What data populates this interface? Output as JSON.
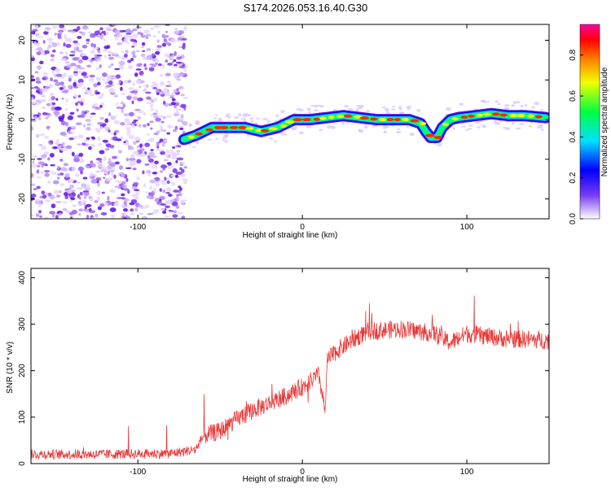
{
  "title": "S174.2026.053.16.40.G30",
  "colors": {
    "trace": "#e83a3a",
    "noise": "#8a3ff0",
    "axis": "#000000"
  },
  "chart_data": [
    {
      "type": "heatmap",
      "xlabel": "Height of straight line (km)",
      "ylabel": "Frequency (Hz)",
      "xlim": [
        -165,
        150
      ],
      "ylim": [
        -25,
        24
      ],
      "xticks": [
        -100,
        0,
        100
      ],
      "yticks": [
        -20,
        -10,
        0,
        10,
        20
      ],
      "colorbar": {
        "label": "Normalized spectral amplitude",
        "range": [
          0,
          0.95
        ],
        "ticks": [
          0,
          0.2,
          0.4,
          0.6,
          0.8
        ]
      },
      "ridge": {
        "x": [
          -72,
          -65,
          -55,
          -45,
          -35,
          -25,
          -15,
          -5,
          5,
          15,
          25,
          35,
          45,
          55,
          65,
          72,
          75,
          78,
          82,
          85,
          90,
          95,
          105,
          115,
          125,
          135,
          148
        ],
        "y": [
          -5,
          -4,
          -2,
          -2,
          -2,
          -3,
          -2,
          0,
          0,
          0.5,
          1,
          0.5,
          0,
          0,
          0,
          -1,
          -3,
          -4.5,
          -4.5,
          -2,
          0,
          0.5,
          1,
          1.5,
          1,
          1,
          0.5
        ]
      }
    },
    {
      "type": "line",
      "xlabel": "Height of straight line (km)",
      "ylabel": "SNR (10 * v/v)",
      "xlim": [
        -165,
        150
      ],
      "ylim": [
        0,
        420
      ],
      "xticks": [
        -100,
        0,
        100
      ],
      "yticks": [
        0,
        100,
        200,
        300,
        400
      ],
      "trend": {
        "x": [
          -165,
          -120,
          -80,
          -65,
          -60,
          -50,
          -40,
          -30,
          -20,
          -10,
          0,
          10,
          14,
          15,
          20,
          30,
          40,
          60,
          80,
          90,
          100,
          110,
          120,
          150
        ],
        "y": [
          20,
          20,
          22,
          30,
          60,
          70,
          95,
          115,
          130,
          145,
          165,
          190,
          110,
          220,
          240,
          265,
          285,
          290,
          280,
          260,
          280,
          275,
          270,
          265
        ]
      },
      "noise_amplitude": 28
    }
  ]
}
